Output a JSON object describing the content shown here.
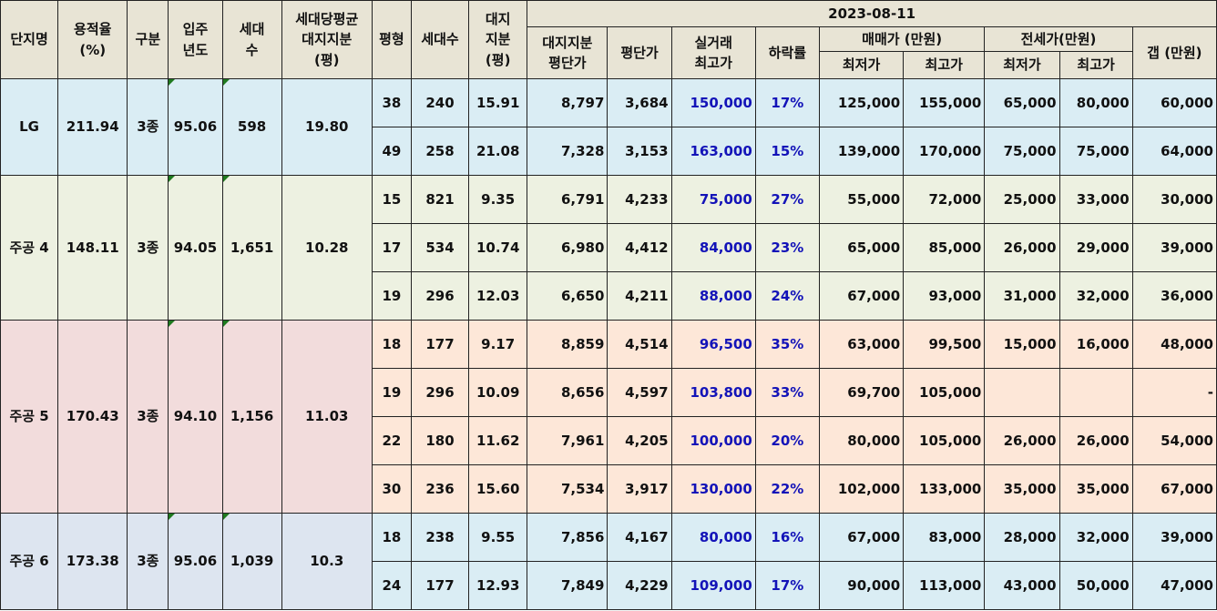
{
  "headers": {
    "name": "단지명",
    "far_1": "용적율",
    "far_2": "(%)",
    "zone": "구분",
    "year_1": "입주",
    "year_2": "년도",
    "units_1": "세대",
    "units_2": "수",
    "avg_land_1": "세대당평균",
    "avg_land_2": "대지지분",
    "avg_land_3": "(평)",
    "pyeong": "평형",
    "type_units": "세대수",
    "land_1": "대지",
    "land_2": "지분",
    "land_3": "(평)",
    "date": "2023-08-11",
    "land_price_1": "대지지분",
    "land_price_2": "평단가",
    "py_price": "평단가",
    "real_high_1": "실거래",
    "real_high_2": "최고가",
    "drop": "하락률",
    "sale_group": "매매가 (만원)",
    "jeonse_group": "전세가(만원)",
    "gap": "갭 (만원)",
    "low": "최저가",
    "high": "최고가"
  },
  "complexes": [
    {
      "name": "LG",
      "far": "211.94",
      "zone": "3종",
      "year": "95.06",
      "units": "598",
      "avg_land": "19.80",
      "bg": "#daedf4",
      "rows": [
        {
          "pyeong": "38",
          "units": "240",
          "land": "15.91",
          "land_price": "8,797",
          "py_price": "3,684",
          "real_high": "150,000",
          "drop": "17%",
          "sale_low": "125,000",
          "sale_high": "155,000",
          "jeonse_low": "65,000",
          "jeonse_high": "80,000",
          "gap": "60,000"
        },
        {
          "pyeong": "49",
          "units": "258",
          "land": "21.08",
          "land_price": "7,328",
          "py_price": "3,153",
          "real_high": "163,000",
          "drop": "15%",
          "sale_low": "139,000",
          "sale_high": "170,000",
          "jeonse_low": "75,000",
          "jeonse_high": "75,000",
          "gap": "64,000"
        }
      ]
    },
    {
      "name": "주공 4",
      "far": "148.11",
      "zone": "3종",
      "year": "94.05",
      "units": "1,651",
      "avg_land": "10.28",
      "bg": "#edf1e1",
      "rows": [
        {
          "pyeong": "15",
          "units": "821",
          "land": "9.35",
          "land_price": "6,791",
          "py_price": "4,233",
          "real_high": "75,000",
          "drop": "27%",
          "sale_low": "55,000",
          "sale_high": "72,000",
          "jeonse_low": "25,000",
          "jeonse_high": "33,000",
          "gap": "30,000"
        },
        {
          "pyeong": "17",
          "units": "534",
          "land": "10.74",
          "land_price": "6,980",
          "py_price": "4,412",
          "real_high": "84,000",
          "drop": "23%",
          "sale_low": "65,000",
          "sale_high": "85,000",
          "jeonse_low": "26,000",
          "jeonse_high": "29,000",
          "gap": "39,000"
        },
        {
          "pyeong": "19",
          "units": "296",
          "land": "12.03",
          "land_price": "6,650",
          "py_price": "4,211",
          "real_high": "88,000",
          "drop": "24%",
          "sale_low": "67,000",
          "sale_high": "93,000",
          "jeonse_low": "31,000",
          "jeonse_high": "32,000",
          "gap": "36,000"
        }
      ]
    },
    {
      "name": "주공 5",
      "far": "170.43",
      "zone": "3종",
      "year": "94.10",
      "units": "1,156",
      "avg_land": "11.03",
      "bg": "#f2dcdc",
      "row_bg": "#fde7d8",
      "rows": [
        {
          "pyeong": "18",
          "units": "177",
          "land": "9.17",
          "land_price": "8,859",
          "py_price": "4,514",
          "real_high": "96,500",
          "drop": "35%",
          "sale_low": "63,000",
          "sale_high": "99,500",
          "jeonse_low": "15,000",
          "jeonse_high": "16,000",
          "gap": "48,000"
        },
        {
          "pyeong": "19",
          "units": "296",
          "land": "10.09",
          "land_price": "8,656",
          "py_price": "4,597",
          "real_high": "103,800",
          "drop": "33%",
          "sale_low": "69,700",
          "sale_high": "105,000",
          "jeonse_low": "",
          "jeonse_high": "",
          "gap": "-"
        },
        {
          "pyeong": "22",
          "units": "180",
          "land": "11.62",
          "land_price": "7,961",
          "py_price": "4,205",
          "real_high": "100,000",
          "drop": "20%",
          "sale_low": "80,000",
          "sale_high": "105,000",
          "jeonse_low": "26,000",
          "jeonse_high": "26,000",
          "gap": "54,000"
        },
        {
          "pyeong": "30",
          "units": "236",
          "land": "15.60",
          "land_price": "7,534",
          "py_price": "3,917",
          "real_high": "130,000",
          "drop": "22%",
          "sale_low": "102,000",
          "sale_high": "133,000",
          "jeonse_low": "35,000",
          "jeonse_high": "35,000",
          "gap": "67,000"
        }
      ]
    },
    {
      "name": "주공 6",
      "far": "173.38",
      "zone": "3종",
      "year": "95.06",
      "units": "1,039",
      "avg_land": "10.3",
      "bg": "#dde5f0",
      "row_bg": "#daedf4",
      "rows": [
        {
          "pyeong": "18",
          "units": "238",
          "land": "9.55",
          "land_price": "7,856",
          "py_price": "4,167",
          "real_high": "80,000",
          "drop": "16%",
          "sale_low": "67,000",
          "sale_high": "83,000",
          "jeonse_low": "28,000",
          "jeonse_high": "32,000",
          "gap": "39,000"
        },
        {
          "pyeong": "24",
          "units": "177",
          "land": "12.93",
          "land_price": "7,849",
          "py_price": "4,229",
          "real_high": "109,000",
          "drop": "17%",
          "sale_low": "90,000",
          "sale_high": "113,000",
          "jeonse_low": "43,000",
          "jeonse_high": "50,000",
          "gap": "47,000"
        }
      ]
    }
  ]
}
